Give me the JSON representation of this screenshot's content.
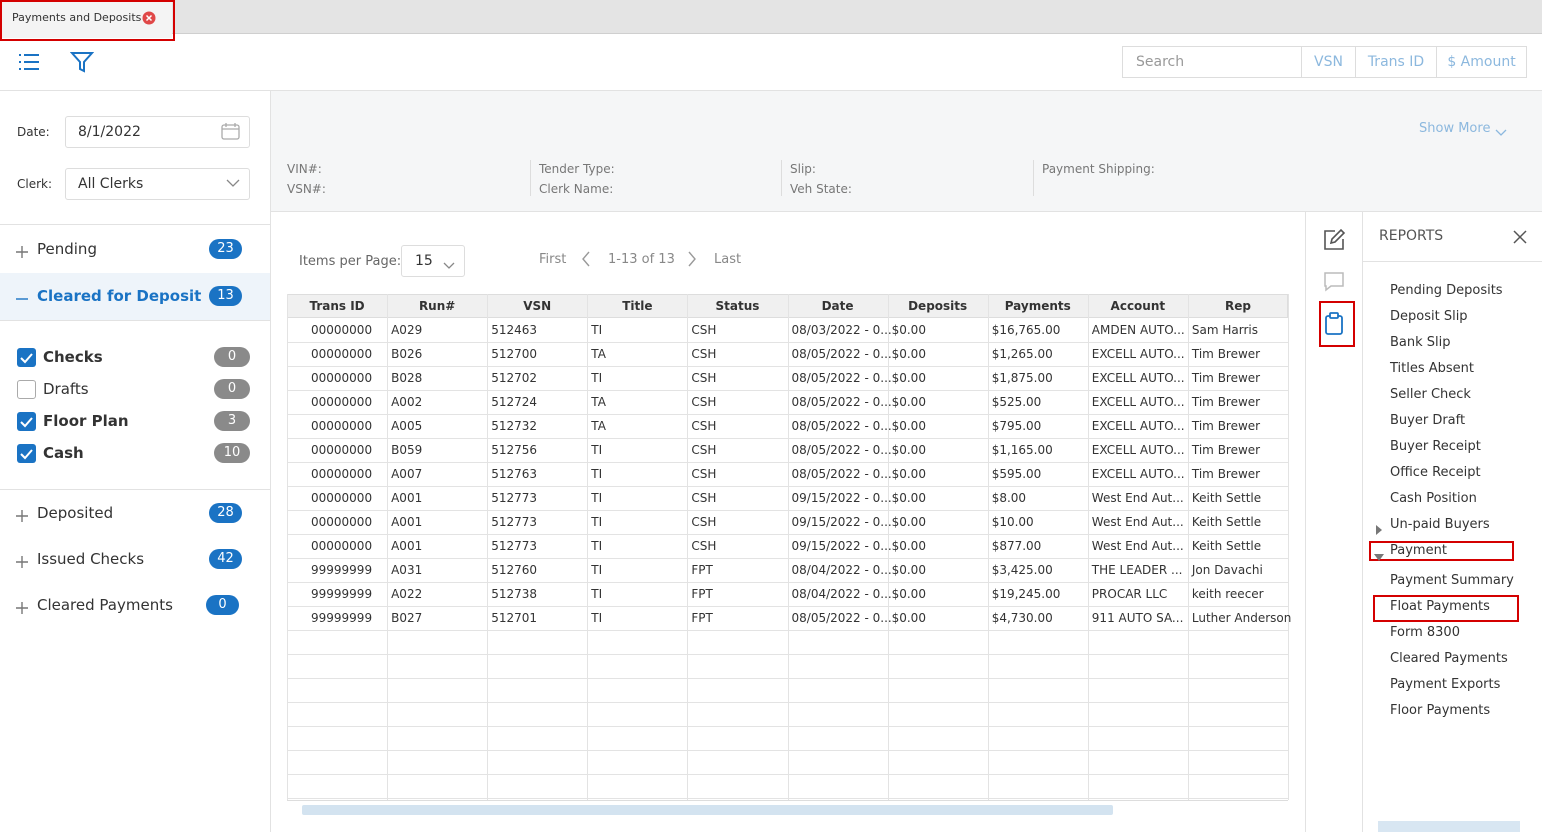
{
  "tab": {
    "title": "Payments and Deposits"
  },
  "toolbar": {
    "search_placeholder": "Search",
    "buttons": [
      "VSN",
      "Trans ID",
      "$ Amount"
    ]
  },
  "filters": {
    "date_label": "Date:",
    "date": "8/1/2022",
    "clerk_label": "Clerk:",
    "clerk": "All Clerks"
  },
  "groups": [
    {
      "label": "Pending",
      "count": 23
    },
    {
      "label": "Cleared for Deposit",
      "count": 13,
      "items": [
        {
          "label": "Checks",
          "count": 0,
          "checked": true
        },
        {
          "label": "Drafts",
          "count": 0,
          "checked": false
        },
        {
          "label": "Floor Plan",
          "count": 3,
          "checked": true
        },
        {
          "label": "Cash",
          "count": 10,
          "checked": true
        }
      ]
    },
    {
      "label": "Deposited",
      "count": 28
    },
    {
      "label": "Issued Checks",
      "count": 42
    },
    {
      "label": "Cleared Payments",
      "count": 0
    }
  ],
  "details": {
    "show_more": "Show More",
    "fields": [
      [
        "VIN#:",
        "VSN#:"
      ],
      [
        "Tender Type:",
        "Clerk Name:"
      ],
      [
        "Slip:",
        "Veh State:"
      ],
      [
        "Payment Shipping:"
      ]
    ]
  },
  "pager": {
    "items_label": "Items per Page:",
    "items_per_page": 15,
    "first": "First",
    "range": "1-13 of 13",
    "last": "Last"
  },
  "table": {
    "columns": [
      "Trans ID",
      "Run#",
      "VSN",
      "Title",
      "Status",
      "Date",
      "Deposits",
      "Payments",
      "Account",
      "Rep"
    ],
    "rows": [
      [
        "00000000",
        "A029",
        "512463",
        "TI",
        "CSH",
        "08/03/2022 - 0...",
        "$0.00",
        "$16,765.00",
        "AMDEN AUTO...",
        "Sam Harris"
      ],
      [
        "00000000",
        "B026",
        "512700",
        "TA",
        "CSH",
        "08/05/2022 - 0...",
        "$0.00",
        "$1,265.00",
        "EXCELL AUTO...",
        "Tim Brewer"
      ],
      [
        "00000000",
        "B028",
        "512702",
        "TI",
        "CSH",
        "08/05/2022 - 0...",
        "$0.00",
        "$1,875.00",
        "EXCELL AUTO...",
        "Tim Brewer"
      ],
      [
        "00000000",
        "A002",
        "512724",
        "TA",
        "CSH",
        "08/05/2022 - 0...",
        "$0.00",
        "$525.00",
        "EXCELL AUTO...",
        "Tim Brewer"
      ],
      [
        "00000000",
        "A005",
        "512732",
        "TA",
        "CSH",
        "08/05/2022 - 0...",
        "$0.00",
        "$795.00",
        "EXCELL AUTO...",
        "Tim Brewer"
      ],
      [
        "00000000",
        "B059",
        "512756",
        "TI",
        "CSH",
        "08/05/2022 - 0...",
        "$0.00",
        "$1,165.00",
        "EXCELL AUTO...",
        "Tim Brewer"
      ],
      [
        "00000000",
        "A007",
        "512763",
        "TI",
        "CSH",
        "08/05/2022 - 0...",
        "$0.00",
        "$595.00",
        "EXCELL AUTO...",
        "Tim Brewer"
      ],
      [
        "00000000",
        "A001",
        "512773",
        "TI",
        "CSH",
        "09/15/2022 - 0...",
        "$0.00",
        "$8.00",
        "West End Aut...",
        "Keith Settle"
      ],
      [
        "00000000",
        "A001",
        "512773",
        "TI",
        "CSH",
        "09/15/2022 - 0...",
        "$0.00",
        "$10.00",
        "West End Aut...",
        "Keith Settle"
      ],
      [
        "00000000",
        "A001",
        "512773",
        "TI",
        "CSH",
        "09/15/2022 - 0...",
        "$0.00",
        "$877.00",
        "West End Aut...",
        "Keith Settle"
      ],
      [
        "99999999",
        "A031",
        "512760",
        "TI",
        "FPT",
        "08/04/2022 - 0...",
        "$0.00",
        "$3,425.00",
        "THE LEADER ...",
        "Jon Davachi"
      ],
      [
        "99999999",
        "A022",
        "512738",
        "TI",
        "FPT",
        "08/04/2022 - 0...",
        "$0.00",
        "$19,245.00",
        "PROCAR LLC",
        "keith reecer"
      ],
      [
        "99999999",
        "B027",
        "512701",
        "TI",
        "FPT",
        "08/05/2022 - 0...",
        "$0.00",
        "$4,730.00",
        "911 AUTO SA...",
        "Luther Anderson"
      ]
    ]
  },
  "reports": {
    "title": "REPORTS",
    "items": [
      "Pending Deposits",
      "Deposit Slip",
      "Bank Slip",
      "Titles Absent",
      "Seller Check",
      "Buyer Draft",
      "Buyer Receipt",
      "Office Receipt",
      "Cash Position",
      "Un-paid Buyers"
    ],
    "payment": {
      "label": "Payment",
      "items": [
        "Payment Summary",
        "Float Payments",
        "Form 8300",
        "Cleared Payments",
        "Payment Exports",
        "Floor Payments"
      ]
    }
  }
}
